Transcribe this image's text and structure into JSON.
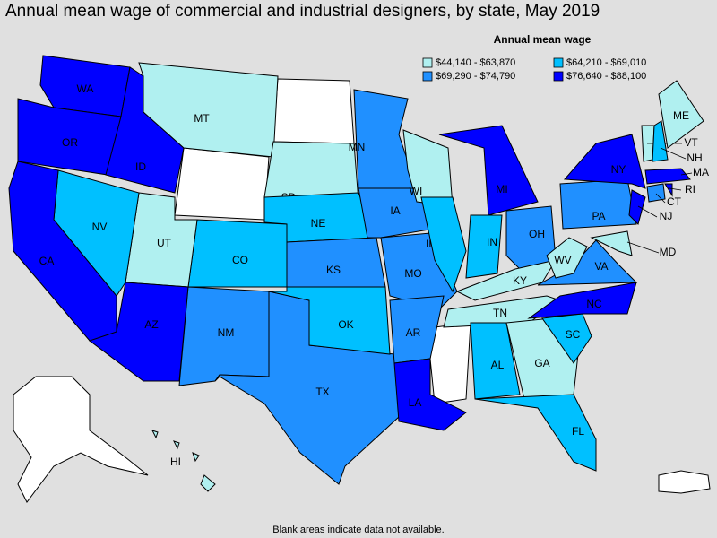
{
  "title": "Annual mean wage of commercial and industrial designers, by state, May 2019",
  "legend": {
    "title": "Annual mean wage",
    "items": [
      {
        "label": "$44,140 - $63,870",
        "color": "#b0f0f0"
      },
      {
        "label": "$64,210 - $69,010",
        "color": "#00c0ff"
      },
      {
        "label": "$69,290 - $74,790",
        "color": "#2090ff"
      },
      {
        "label": "$76,640 - $88,100",
        "color": "#0000ff"
      }
    ]
  },
  "states": [
    {
      "label": "WA",
      "color": "#0000ff"
    },
    {
      "label": "OR",
      "color": "#0000ff"
    },
    {
      "label": "ID",
      "color": "#0000ff"
    },
    {
      "label": "MT",
      "color": "#b0f0f0"
    },
    {
      "label": "SD",
      "color": "#b0f0f0"
    },
    {
      "label": "NE",
      "color": "#00c0ff"
    },
    {
      "label": "CO",
      "color": "#00c0ff"
    },
    {
      "label": "UT",
      "color": "#b0f0f0"
    },
    {
      "label": "NV",
      "color": "#00c0ff"
    },
    {
      "label": "CA",
      "color": "#0000ff"
    },
    {
      "label": "AZ",
      "color": "#0000ff"
    },
    {
      "label": "NM",
      "color": "#2090ff"
    },
    {
      "label": "TX",
      "color": "#2090ff"
    },
    {
      "label": "OK",
      "color": "#00c0ff"
    },
    {
      "label": "KS",
      "color": "#2090ff"
    },
    {
      "label": "MN",
      "color": "#2090ff"
    },
    {
      "label": "IA",
      "color": "#2090ff"
    },
    {
      "label": "MO",
      "color": "#2090ff"
    },
    {
      "label": "AR",
      "color": "#2090ff"
    },
    {
      "label": "LA",
      "color": "#0000ff"
    },
    {
      "label": "WI",
      "color": "#b0f0f0"
    },
    {
      "label": "IL",
      "color": "#00c0ff"
    },
    {
      "label": "IN",
      "color": "#00c0ff"
    },
    {
      "label": "MI",
      "color": "#0000ff"
    },
    {
      "label": "OH",
      "color": "#2090ff"
    },
    {
      "label": "KY",
      "color": "#b0f0f0"
    },
    {
      "label": "TN",
      "color": "#b0f0f0"
    },
    {
      "label": "AL",
      "color": "#00c0ff"
    },
    {
      "label": "GA",
      "color": "#b0f0f0"
    },
    {
      "label": "FL",
      "color": "#00c0ff"
    },
    {
      "label": "SC",
      "color": "#00c0ff"
    },
    {
      "label": "NC",
      "color": "#0000ff"
    },
    {
      "label": "VA",
      "color": "#2090ff"
    },
    {
      "label": "WV",
      "color": "#b0f0f0"
    },
    {
      "label": "PA",
      "color": "#2090ff"
    },
    {
      "label": "NY",
      "color": "#0000ff"
    },
    {
      "label": "NJ",
      "color": "#0000ff"
    },
    {
      "label": "MD",
      "color": "#b0f0f0"
    },
    {
      "label": "CT",
      "color": "#2090ff"
    },
    {
      "label": "RI",
      "color": "#0000ff"
    },
    {
      "label": "MA",
      "color": "#0000ff"
    },
    {
      "label": "VT",
      "color": "#b0f0f0"
    },
    {
      "label": "NH",
      "color": "#00c0ff"
    },
    {
      "label": "ME",
      "color": "#b0f0f0"
    },
    {
      "label": "HI",
      "color": "#b0f0f0"
    }
  ],
  "footnote": "Blank areas indicate data not available."
}
